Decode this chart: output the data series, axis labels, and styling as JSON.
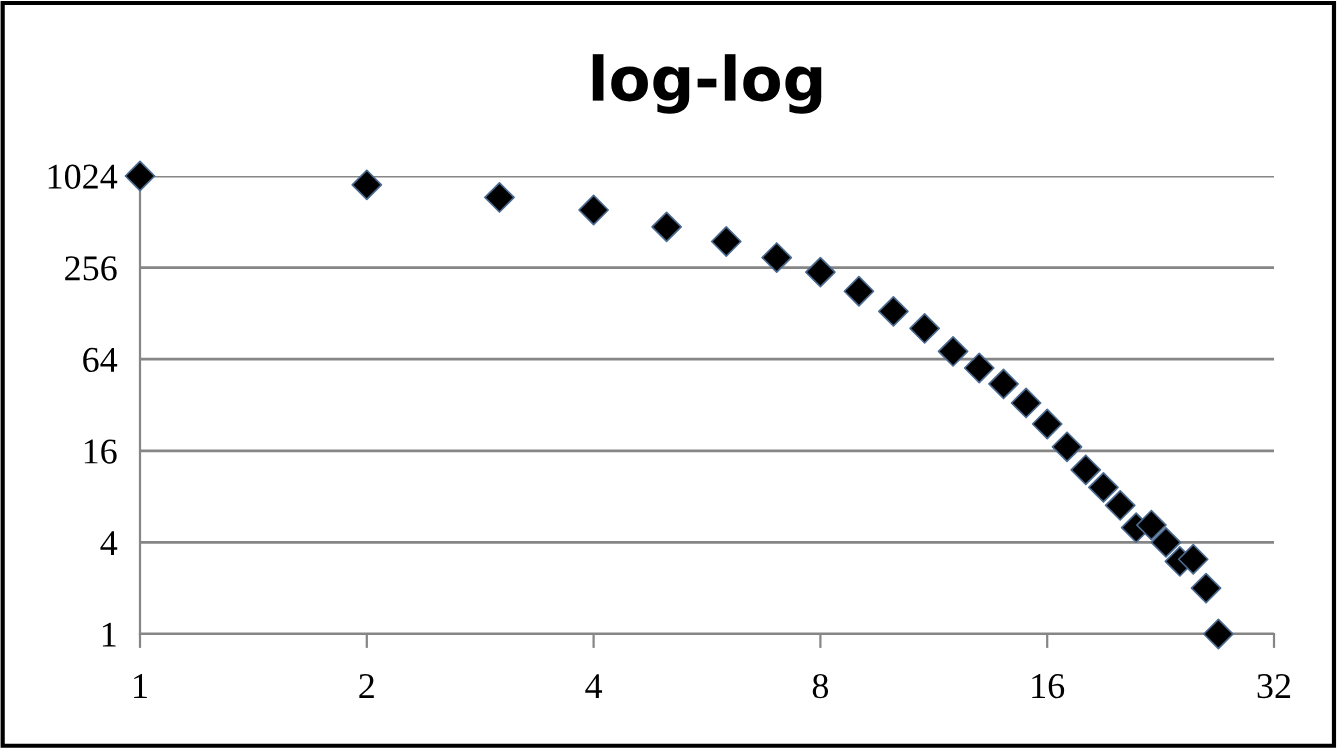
{
  "chart_data": {
    "type": "scatter",
    "title": "log-log",
    "x": [
      1,
      2,
      3,
      4,
      5,
      6,
      7,
      8,
      9,
      10,
      11,
      12,
      13,
      14,
      15,
      16,
      17,
      18,
      19,
      20,
      21,
      22,
      23,
      24,
      25,
      26,
      27
    ],
    "series": [
      {
        "color": "#000000",
        "values": [
          1024,
          896,
          740,
          612,
          474,
          380,
          298,
          239,
          179,
          132,
          102,
          72,
          56,
          44,
          33,
          24,
          17,
          12,
          9.2,
          7,
          5,
          5.2,
          4,
          3,
          3.1,
          2,
          1
        ]
      }
    ],
    "log": "xy",
    "marker": "diamond",
    "grid": "y",
    "xlim": [
      1,
      32
    ],
    "xticks": [
      1,
      2,
      4,
      8,
      16,
      32
    ],
    "ylim": [
      1,
      1024
    ],
    "yticks": [
      1,
      4,
      16,
      64,
      256,
      1024
    ]
  }
}
